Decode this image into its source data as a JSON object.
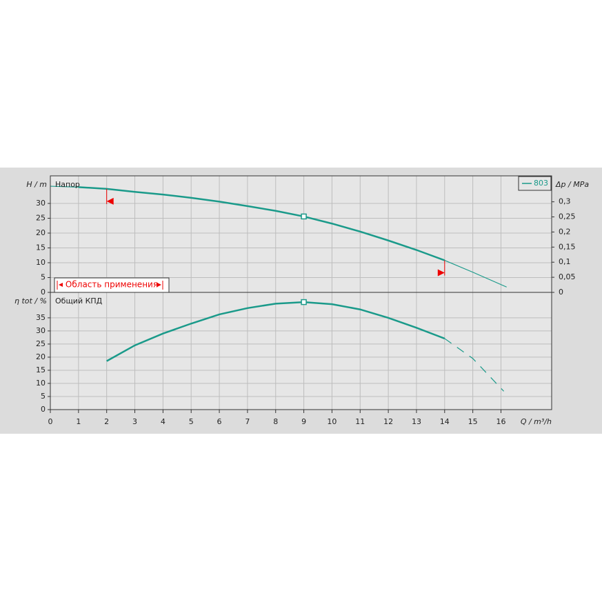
{
  "chart_data": [
    {
      "type": "line",
      "title": "Напор",
      "y_label": "H / m",
      "y2_label": "Δp / MPa",
      "xlim": [
        0,
        17.8
      ],
      "ylim": [
        0,
        39.3
      ],
      "yticks": [
        0,
        5,
        10,
        15,
        20,
        25,
        30
      ],
      "y2lim": [
        0,
        0.386
      ],
      "y2ticks": [
        0,
        {
          "value": 0.05,
          "label": "0,05"
        },
        {
          "value": 0.1,
          "label": "0,1"
        },
        {
          "value": 0.15,
          "label": "0,15"
        },
        {
          "value": 0.2,
          "label": "0,2"
        },
        {
          "value": 0.25,
          "label": "0,25"
        },
        {
          "value": 0.3,
          "label": "0,3"
        }
      ],
      "series": [
        {
          "name": "803",
          "color": "#1a9a8a",
          "x": [
            0,
            1,
            2,
            3,
            4,
            5,
            6,
            7,
            8,
            9,
            10,
            11,
            12,
            13,
            14,
            15,
            16.2
          ],
          "values": [
            35.8,
            35.5,
            34.9,
            33.9,
            33.0,
            31.9,
            30.6,
            29.1,
            27.5,
            25.6,
            23.2,
            20.5,
            17.5,
            14.3,
            10.8,
            6.8,
            1.8
          ]
        }
      ],
      "operating_range": [
        2,
        14
      ],
      "range_label": "Область применения",
      "outside_style": "thin",
      "duty_point": {
        "x": 9,
        "y": 25.6
      },
      "legend": "top-right",
      "grid": true
    },
    {
      "type": "line",
      "title": "Общий КПД",
      "y_label": "η tot / %",
      "x_label": "Q / m³/h",
      "xlim": [
        0,
        17.8
      ],
      "xticks": [
        0,
        1,
        2,
        3,
        4,
        5,
        6,
        7,
        8,
        9,
        10,
        11,
        12,
        13,
        14,
        15,
        16
      ],
      "ylim": [
        0,
        44.7
      ],
      "yticks": [
        0,
        5,
        10,
        15,
        20,
        25,
        30,
        35
      ],
      "series": [
        {
          "color": "#1a9a8a",
          "x": [
            2,
            3,
            4,
            5,
            6,
            7,
            8,
            9,
            10,
            11,
            12,
            13,
            14,
            15,
            16.1
          ],
          "values": [
            18.5,
            24.5,
            29,
            32.8,
            36.3,
            38.7,
            40.4,
            41,
            40.2,
            38.2,
            35,
            31.2,
            27.1,
            19.5,
            7
          ]
        }
      ],
      "operating_range": [
        2,
        14
      ],
      "outside_style": "dashed",
      "duty_point": {
        "x": 9,
        "y": 41
      },
      "grid": true
    }
  ]
}
